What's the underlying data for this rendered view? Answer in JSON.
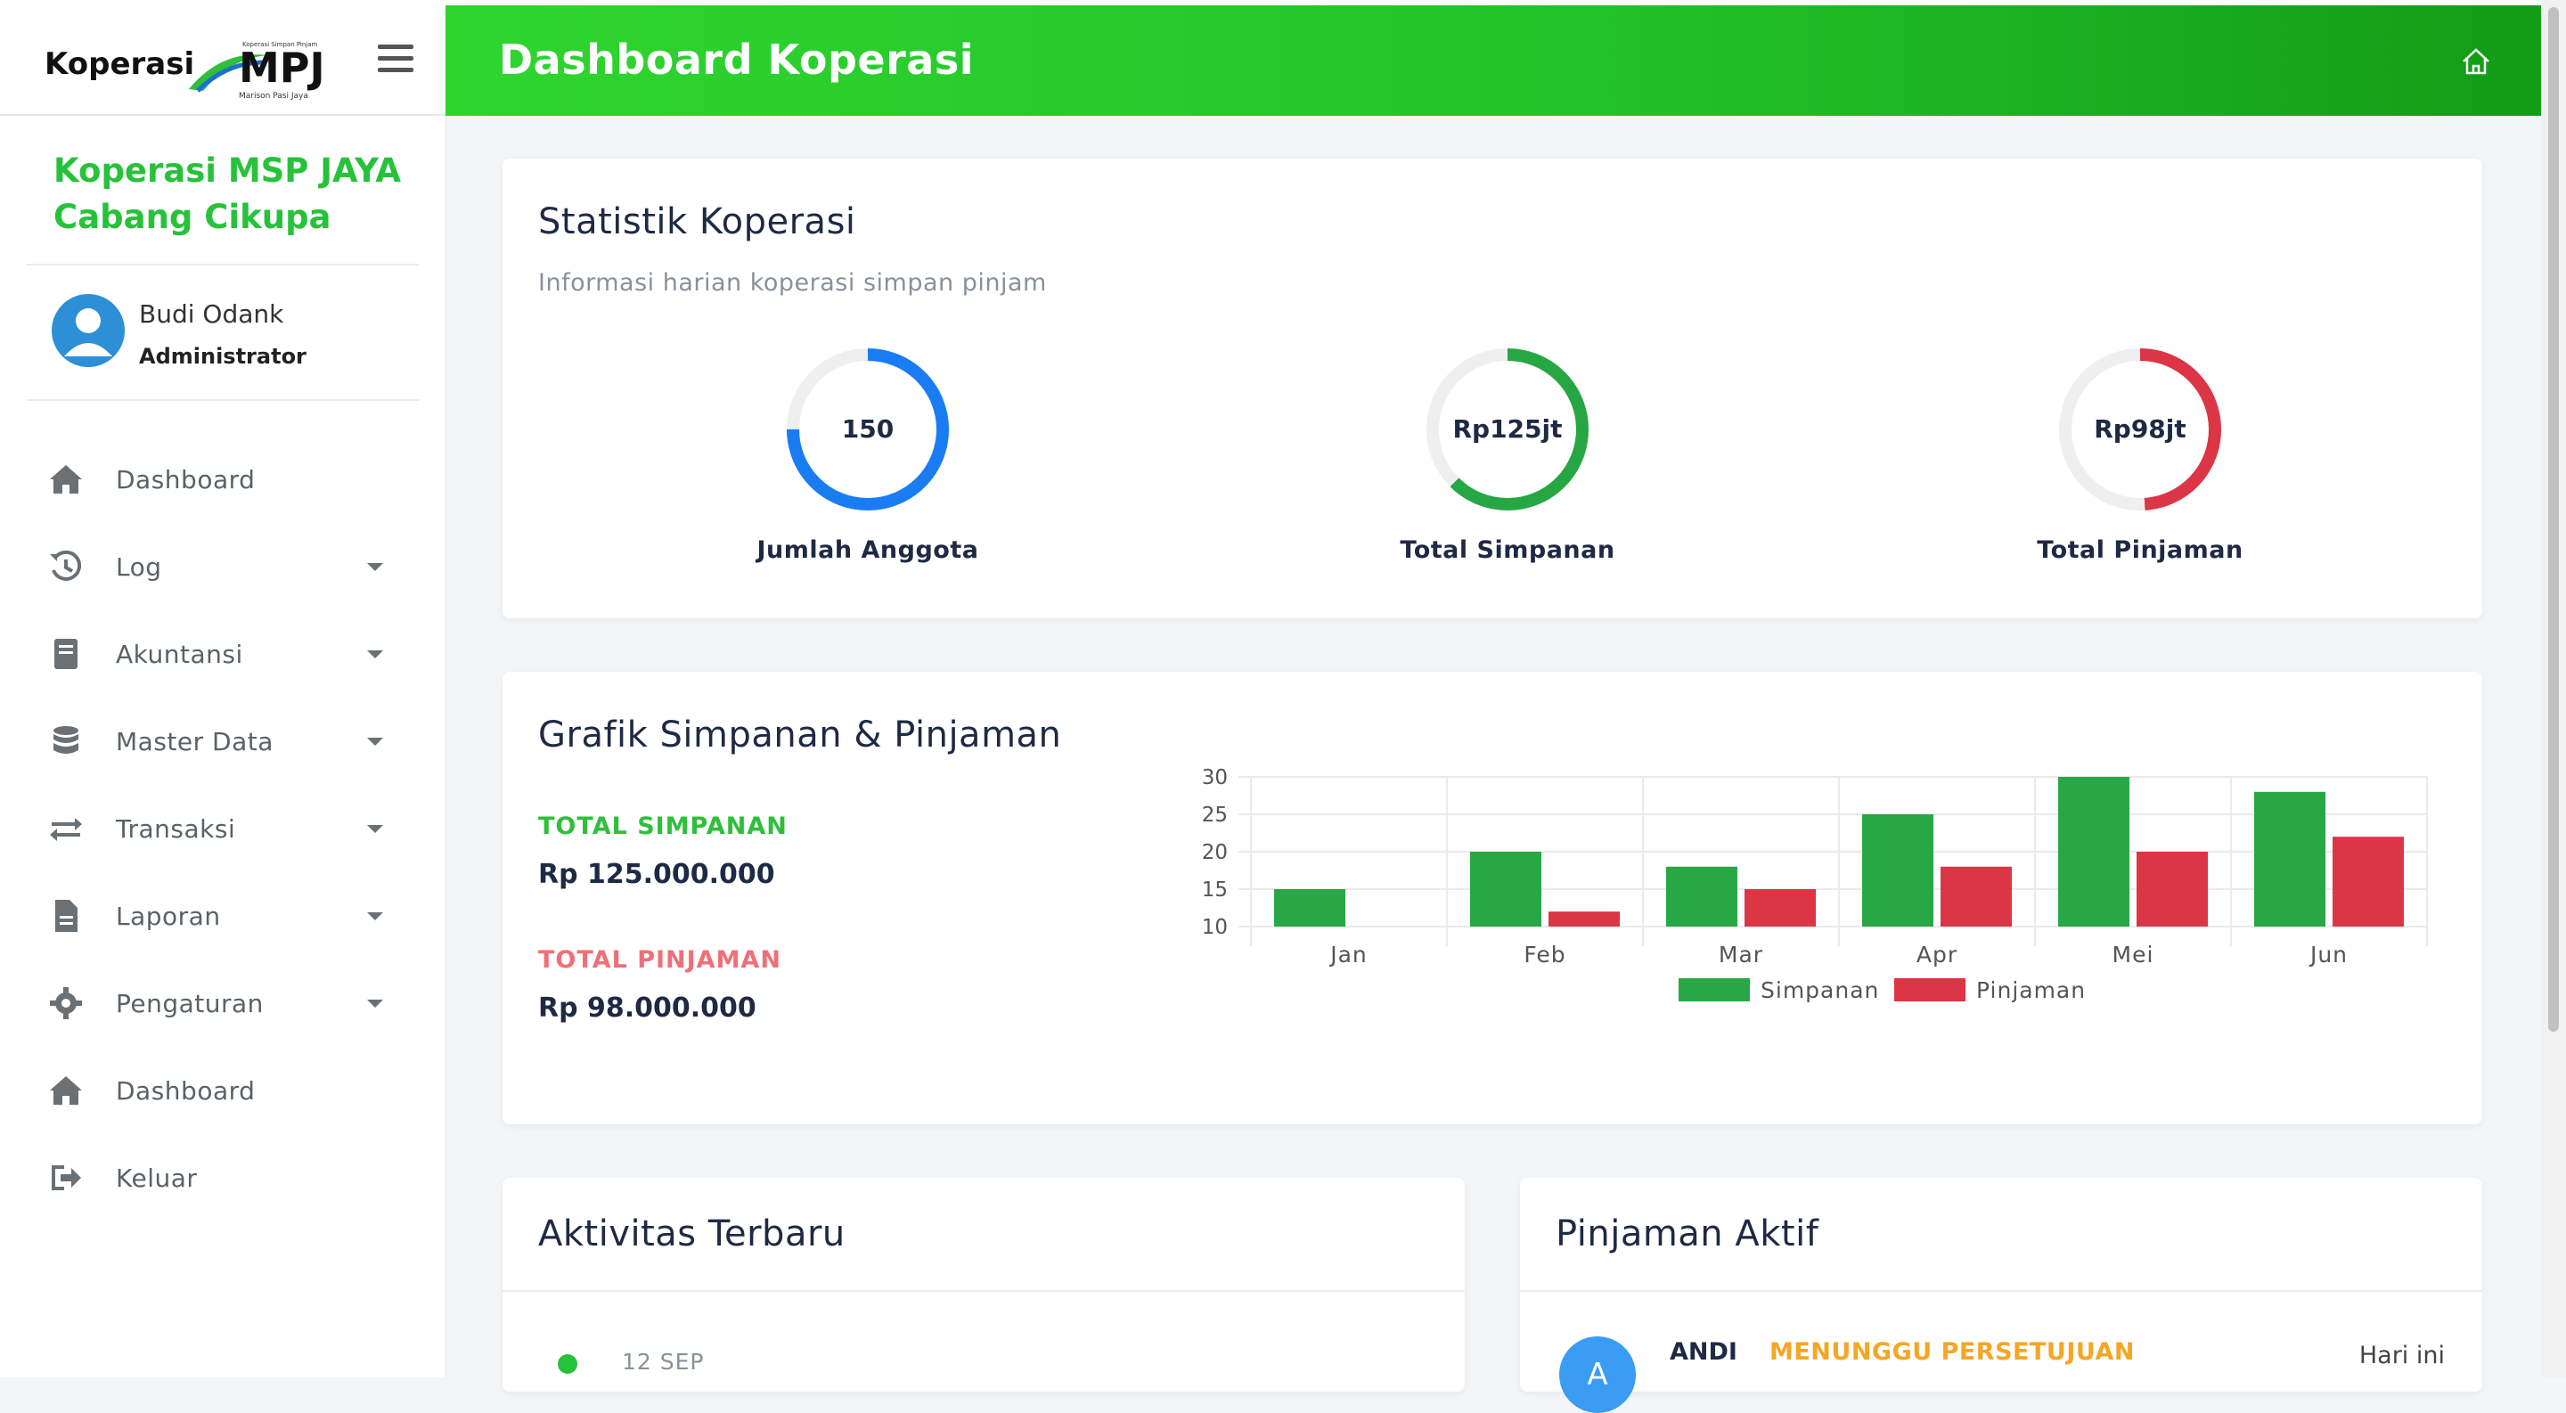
{
  "sidebar": {
    "brand_name": "Koperasi",
    "logo": {
      "text": "MPJ",
      "tagline": "Koperasi Simpan Pinjam",
      "subtitle": "Marison Pasi Jaya"
    },
    "branch_name": "Koperasi MSP JAYA Cabang Cikupa",
    "user": {
      "name": "Budi Odank",
      "role": "Administrator"
    },
    "items": [
      {
        "label": "Dashboard",
        "icon": "home-icon",
        "has_caret": false
      },
      {
        "label": "Log",
        "icon": "history-icon",
        "has_caret": true
      },
      {
        "label": "Akuntansi",
        "icon": "book-icon",
        "has_caret": true
      },
      {
        "label": "Master Data",
        "icon": "database-icon",
        "has_caret": true
      },
      {
        "label": "Transaksi",
        "icon": "exchange-icon",
        "has_caret": true
      },
      {
        "label": "Laporan",
        "icon": "file-icon",
        "has_caret": true
      },
      {
        "label": "Pengaturan",
        "icon": "gear-icon",
        "has_caret": true
      },
      {
        "label": "Dashboard",
        "icon": "home-icon",
        "has_caret": false
      },
      {
        "label": "Keluar",
        "icon": "sign-out-icon",
        "has_caret": false
      }
    ]
  },
  "header": {
    "title": "Dashboard Koperasi",
    "home_icon": "home-outline-icon"
  },
  "stats": {
    "title": "Statistik Koperasi",
    "subtitle": "Informasi harian koperasi simpan pinjam",
    "gauges": [
      {
        "value": "150",
        "label": "Jumlah Anggota",
        "fill_fraction": 0.75,
        "color": "#1a7cf2"
      },
      {
        "value": "Rp125jt",
        "label": "Total Simpanan",
        "fill_fraction": 0.625,
        "color": "#27a744"
      },
      {
        "value": "Rp98jt",
        "label": "Total Pinjaman",
        "fill_fraction": 0.49,
        "color": "#dc3545"
      }
    ]
  },
  "grafik": {
    "title": "Grafik Simpanan & Pinjaman",
    "simpanan_label": "TOTAL SIMPANAN",
    "simpanan_value": "Rp 125.000.000",
    "pinjaman_label": "TOTAL PINJAMAN",
    "pinjaman_value": "Rp 98.000.000"
  },
  "chart_data": {
    "type": "bar",
    "categories": [
      "Jan",
      "Feb",
      "Mar",
      "Apr",
      "Mei",
      "Jun"
    ],
    "series": [
      {
        "name": "Simpanan",
        "values": [
          15,
          20,
          18,
          25,
          30,
          28
        ],
        "color": "#28a745"
      },
      {
        "name": "Pinjaman",
        "values": [
          10,
          12,
          15,
          18,
          20,
          22
        ],
        "color": "#dc3545"
      }
    ],
    "ylim": [
      10,
      30
    ],
    "yticks": [
      10,
      15,
      20,
      25,
      30
    ],
    "grid": true,
    "legend": "bottom"
  },
  "aktivitas": {
    "title": "Aktivitas Terbaru",
    "items": [
      {
        "date": "12 SEP"
      }
    ]
  },
  "pinjaman_aktif": {
    "title": "Pinjaman Aktif",
    "items": [
      {
        "initial": "A",
        "name": "ANDI",
        "status": "MENUNGGU PERSETUJUAN",
        "time": "Hari ini"
      }
    ]
  }
}
